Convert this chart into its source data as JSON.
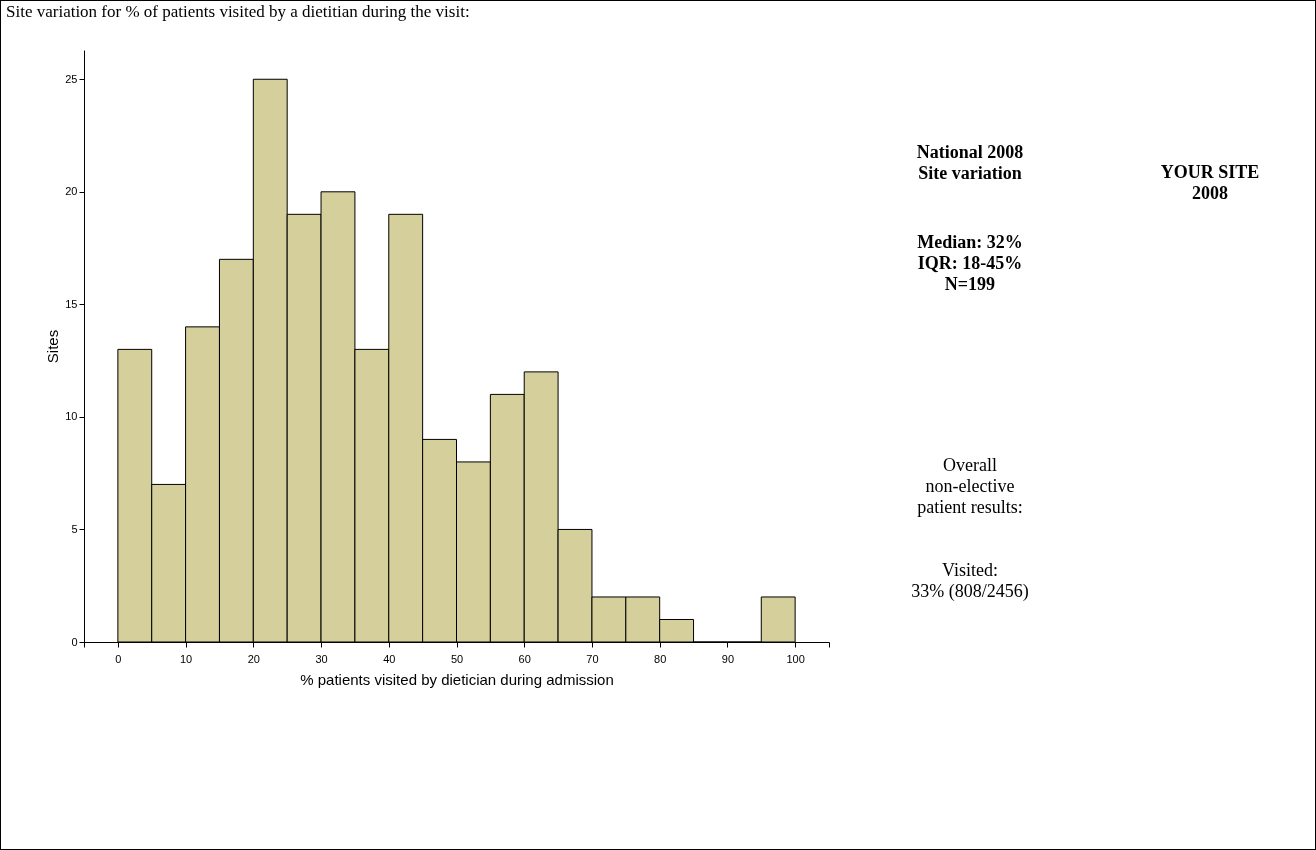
{
  "chart_data": {
    "type": "histogram",
    "title": "Site variation for % of patients visited by a dietitian during the visit:",
    "xlabel": "%  patients visited by dietician during admission",
    "ylabel": "Sites",
    "bins": [
      0,
      5,
      10,
      15,
      20,
      25,
      30,
      35,
      40,
      45,
      50,
      55,
      60,
      65,
      70,
      75,
      80,
      85,
      90,
      95,
      100
    ],
    "values": [
      13,
      7,
      14,
      17,
      25,
      19,
      20,
      13,
      19,
      9,
      8,
      11,
      12,
      5,
      2,
      2,
      1,
      0,
      0,
      2
    ],
    "color": "#d4cf9b",
    "xlim": [
      -5,
      105
    ],
    "xticks": [
      {
        "value": -5,
        "label": null
      },
      0,
      10,
      20,
      30,
      40,
      50,
      60,
      70,
      80,
      90,
      100,
      {
        "value": 105,
        "label": null
      }
    ],
    "ylim": [
      0,
      26.3
    ],
    "yticks": [
      0,
      5,
      10,
      15,
      20,
      25
    ],
    "grid": false,
    "annotations": [
      "National 2008\nSite variation",
      "Median: 32%\nIQR: 18-45%\nN=199",
      "YOUR SITE\n2008",
      "Overall\nnon-elective\npatient results:",
      "Visited:\n33% (808/2456)"
    ]
  }
}
